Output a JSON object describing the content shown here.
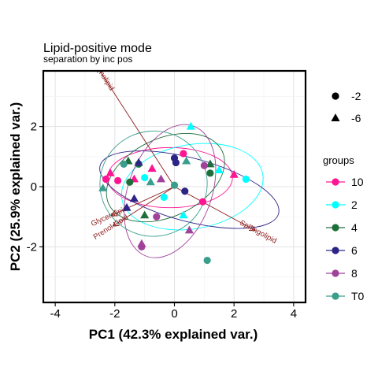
{
  "chart_data": {
    "type": "scatter",
    "title": "Lipid-positive mode",
    "subtitle": "separation by inc pos",
    "xlabel": "PC1 (42.3% explained var.)",
    "ylabel": "PC2 (25.9% explained var.)",
    "xlim": [
      -4.4,
      4.4
    ],
    "ylim": [
      -3.85,
      3.85
    ],
    "x_ticks": [
      -4,
      -2,
      0,
      2,
      4
    ],
    "x_tick_labels": [
      "-4",
      "-2",
      "0",
      "2",
      "4"
    ],
    "y_ticks": [
      -2,
      0,
      2
    ],
    "y_tick_labels": [
      "-2",
      "0",
      "2"
    ],
    "grid": true,
    "legend_position": "right",
    "shape_legend": {
      "items": [
        {
          "label": "-2",
          "shape": "circle"
        },
        {
          "label": "-6",
          "shape": "triangle"
        }
      ]
    },
    "color_legend": {
      "title": "groups",
      "items": [
        {
          "label": "10",
          "color": "#FF1493"
        },
        {
          "label": "2",
          "color": "#00FFFF"
        },
        {
          "label": "4",
          "color": "#1E6E3C"
        },
        {
          "label": "6",
          "color": "#2C2486"
        },
        {
          "label": "8",
          "color": "#A0429A"
        },
        {
          "label": "T0",
          "color": "#3A9E8C"
        }
      ]
    },
    "loadings": [
      {
        "label": "Glycerophospholipid",
        "x": -2.6,
        "y": 4.0
      },
      {
        "label": "Glycerolipid",
        "x": -2.1,
        "y": -0.95
      },
      {
        "label": "Prenol Lipid",
        "x": -2.05,
        "y": -1.3
      },
      {
        "label": "Sphingolipid",
        "x": 2.7,
        "y": -1.45
      }
    ],
    "ellipses": [
      {
        "group": "10",
        "cx": -0.15,
        "cy": 0.3,
        "rx": 2.1,
        "ry": 1.0,
        "angle": 0
      },
      {
        "group": "2",
        "cx": 0.6,
        "cy": 0.0,
        "rx": 2.4,
        "ry": 1.4,
        "angle": 10
      },
      {
        "group": "4",
        "cx": -0.3,
        "cy": 0.3,
        "rx": 2.1,
        "ry": 1.3,
        "angle": 25
      },
      {
        "group": "6",
        "cx": 0.5,
        "cy": -0.1,
        "rx": 3.1,
        "ry": 1.05,
        "angle": -15
      },
      {
        "group": "8",
        "cx": -0.15,
        "cy": -0.15,
        "rx": 1.4,
        "ry": 2.3,
        "angle": -20
      },
      {
        "group": "T0",
        "cx": -0.7,
        "cy": 0.1,
        "rx": 1.8,
        "ry": 1.75,
        "angle": 5
      }
    ],
    "points": [
      {
        "group": "10",
        "shape": "circle",
        "x": -2.3,
        "y": 0.25
      },
      {
        "group": "10",
        "shape": "triangle",
        "x": -2.15,
        "y": 0.45
      },
      {
        "group": "10",
        "shape": "circle",
        "x": -1.9,
        "y": 0.2
      },
      {
        "group": "10",
        "shape": "triangle",
        "x": -1.35,
        "y": 0.25
      },
      {
        "group": "10",
        "shape": "circle",
        "x": 0.3,
        "y": 1.1
      },
      {
        "group": "10",
        "shape": "triangle",
        "x": -0.75,
        "y": 0.6
      },
      {
        "group": "10",
        "shape": "circle",
        "x": 0.95,
        "y": -0.5
      },
      {
        "group": "10",
        "shape": "triangle",
        "x": 2.0,
        "y": 0.4
      },
      {
        "group": "2",
        "shape": "triangle",
        "x": 0.55,
        "y": 2.0
      },
      {
        "group": "2",
        "shape": "circle",
        "x": -1.0,
        "y": 0.3
      },
      {
        "group": "2",
        "shape": "circle",
        "x": -0.35,
        "y": -0.35
      },
      {
        "group": "2",
        "shape": "triangle",
        "x": 0.3,
        "y": -0.95
      },
      {
        "group": "2",
        "shape": "circle",
        "x": 2.4,
        "y": 0.25
      },
      {
        "group": "2",
        "shape": "triangle",
        "x": 1.5,
        "y": 0.55
      },
      {
        "group": "4",
        "shape": "triangle",
        "x": -1.55,
        "y": 0.85
      },
      {
        "group": "4",
        "shape": "circle",
        "x": -1.2,
        "y": 0.75
      },
      {
        "group": "4",
        "shape": "triangle",
        "x": 1.2,
        "y": 0.75
      },
      {
        "group": "4",
        "shape": "circle",
        "x": 1.2,
        "y": 0.45
      },
      {
        "group": "4",
        "shape": "triangle",
        "x": -1.0,
        "y": -0.95
      },
      {
        "group": "4",
        "shape": "circle",
        "x": -1.5,
        "y": 0.15
      },
      {
        "group": "6",
        "shape": "circle",
        "x": 0.0,
        "y": 0.95
      },
      {
        "group": "6",
        "shape": "circle",
        "x": 0.05,
        "y": 0.8
      },
      {
        "group": "6",
        "shape": "triangle",
        "x": -1.2,
        "y": 0.8
      },
      {
        "group": "6",
        "shape": "triangle",
        "x": -1.6,
        "y": -0.7
      },
      {
        "group": "6",
        "shape": "triangle",
        "x": -1.35,
        "y": -0.4
      },
      {
        "group": "6",
        "shape": "circle",
        "x": 0.35,
        "y": -0.15
      },
      {
        "group": "8",
        "shape": "triangle",
        "x": -0.45,
        "y": 0.25
      },
      {
        "group": "8",
        "shape": "circle",
        "x": 1.0,
        "y": 0.7
      },
      {
        "group": "8",
        "shape": "triangle",
        "x": 0.5,
        "y": -1.45
      },
      {
        "group": "8",
        "shape": "circle",
        "x": -0.6,
        "y": -1.0
      },
      {
        "group": "8",
        "shape": "triangle",
        "x": -1.1,
        "y": -1.9
      },
      {
        "group": "8",
        "shape": "circle",
        "x": -1.1,
        "y": -2.0
      },
      {
        "group": "T0",
        "shape": "triangle",
        "x": -2.4,
        "y": -0.05
      },
      {
        "group": "T0",
        "shape": "circle",
        "x": -1.7,
        "y": 0.75
      },
      {
        "group": "T0",
        "shape": "triangle",
        "x": -0.8,
        "y": 0.15
      },
      {
        "group": "T0",
        "shape": "circle",
        "x": 0.0,
        "y": 0.05
      },
      {
        "group": "T0",
        "shape": "triangle",
        "x": 0.4,
        "y": 0.85
      },
      {
        "group": "T0",
        "shape": "circle",
        "x": 1.1,
        "y": -2.45
      }
    ]
  }
}
